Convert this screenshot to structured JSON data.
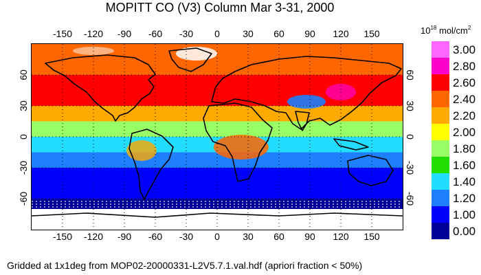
{
  "title": "MOPITT CO (V3) Column Mar 3-31, 2000",
  "units": {
    "prefix": "10",
    "exponent": "18",
    "rest": " mol/cm",
    "rest_exponent": "2"
  },
  "footer": "Gridded at 1x1deg from MOP02-20000331-L2V5.7.1.val.hdf (apriori fraction < 50%)",
  "lon_ticks": [
    "-150",
    "-120",
    "-90",
    "-60",
    "-30",
    "0",
    "30",
    "60",
    "90",
    "120",
    "150"
  ],
  "lat_ticks": [
    "60",
    "30",
    "0",
    "-30",
    "-60"
  ],
  "legend": [
    {
      "label": "3.00",
      "color": "#ff66ff"
    },
    {
      "label": "2.80",
      "color": "#ff00cc"
    },
    {
      "label": "2.60",
      "color": "#ff0000"
    },
    {
      "label": "2.40",
      "color": "#ff6600"
    },
    {
      "label": "2.20",
      "color": "#ffaa00"
    },
    {
      "label": "2.00",
      "color": "#ffff00"
    },
    {
      "label": "1.80",
      "color": "#99ff66"
    },
    {
      "label": "1.60",
      "color": "#22dd00"
    },
    {
      "label": "1.40",
      "color": "#22ddff"
    },
    {
      "label": "1.20",
      "color": "#1e7fff"
    },
    {
      "label": "1.00",
      "color": "#0000ff"
    },
    {
      "label": "0.00",
      "color": "#000099"
    }
  ],
  "chart_data": {
    "type": "heatmap",
    "title": "MOPITT CO (V3) Column Mar 3-31, 2000",
    "colorbar_unit": "10^18 mol/cm^2",
    "x_range": [
      -180,
      180
    ],
    "y_range": [
      -90,
      90
    ],
    "latitude_band_values": [
      {
        "lat_min": 60,
        "lat_max": 90,
        "value": 2.5
      },
      {
        "lat_min": 30,
        "lat_max": 60,
        "value": 2.6
      },
      {
        "lat_min": 15,
        "lat_max": 30,
        "value": 2.2
      },
      {
        "lat_min": 0,
        "lat_max": 15,
        "value": 1.9
      },
      {
        "lat_min": -15,
        "lat_max": 0,
        "value": 1.5
      },
      {
        "lat_min": -30,
        "lat_max": -15,
        "value": 1.3
      },
      {
        "lat_min": -60,
        "lat_max": -30,
        "value": 1.1
      },
      {
        "lat_min": -90,
        "lat_max": -60,
        "value": 0.5
      }
    ]
  }
}
